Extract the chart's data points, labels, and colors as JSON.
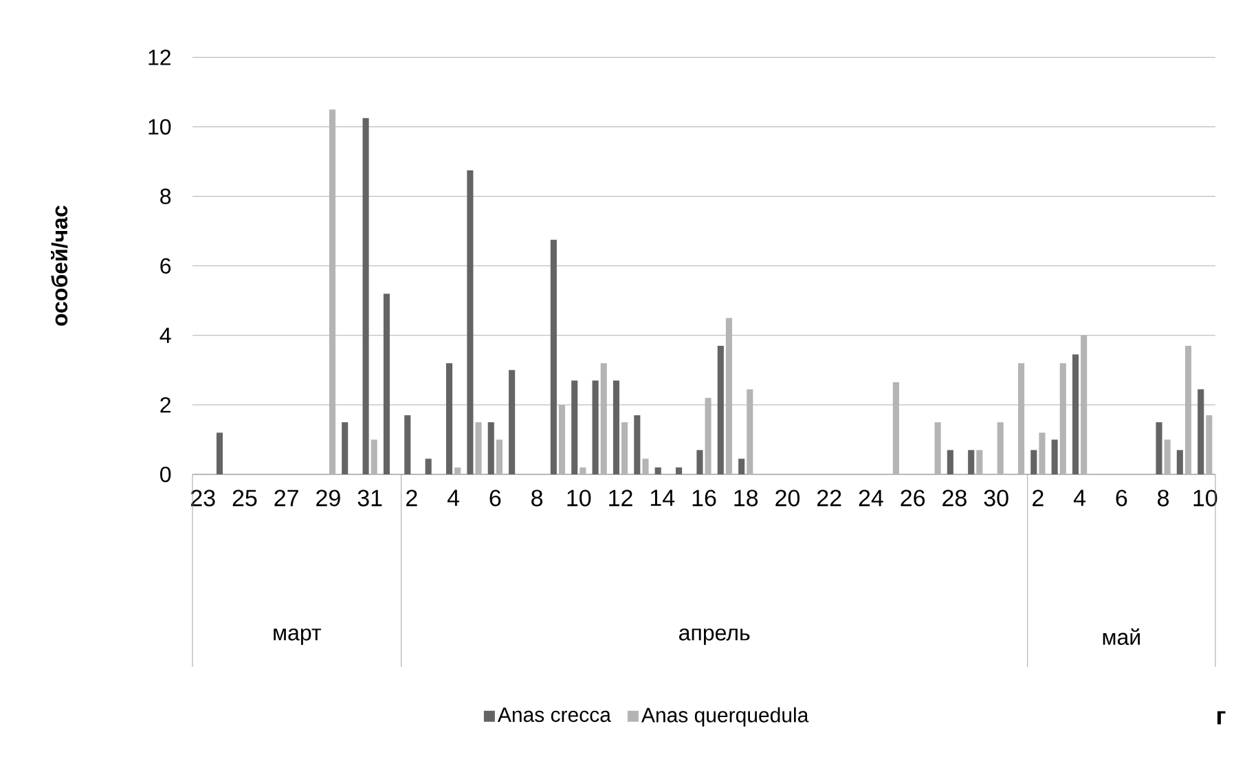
{
  "chart_data": {
    "type": "bar",
    "ylabel": "особей/час",
    "categories": [
      "23",
      null,
      "25",
      null,
      "27",
      null,
      "29",
      null,
      "31",
      null,
      "2",
      null,
      "4",
      null,
      "6",
      null,
      "8",
      null,
      "10",
      null,
      "12",
      null,
      "14",
      null,
      "16",
      null,
      "18",
      null,
      "20",
      null,
      "22",
      null,
      "24",
      null,
      "26",
      null,
      "28",
      null,
      "30",
      null,
      "2",
      null,
      "4",
      null,
      "6",
      null,
      "8",
      null,
      "10"
    ],
    "series": [
      {
        "name": "Anas crecca",
        "color": "#646464",
        "values": [
          null,
          1.2,
          null,
          null,
          null,
          null,
          null,
          1.5,
          10.25,
          5.2,
          1.7,
          0.45,
          3.2,
          8.75,
          1.5,
          3.0,
          null,
          6.75,
          2.7,
          2.7,
          2.7,
          1.7,
          0.2,
          0.2,
          0.7,
          3.7,
          0.45,
          null,
          null,
          null,
          null,
          null,
          null,
          null,
          null,
          null,
          0.7,
          0.7,
          null,
          null,
          0.7,
          1.0,
          3.45,
          null,
          null,
          null,
          1.5,
          0.7,
          2.45
        ]
      },
      {
        "name": "Anas querquedula",
        "color": "#b4b4b4",
        "values": [
          null,
          null,
          null,
          null,
          null,
          null,
          10.5,
          null,
          1.0,
          null,
          null,
          null,
          0.2,
          1.5,
          1.0,
          null,
          null,
          2.0,
          0.2,
          3.2,
          1.5,
          0.45,
          null,
          null,
          2.2,
          4.5,
          2.45,
          null,
          null,
          null,
          null,
          null,
          null,
          2.65,
          null,
          1.5,
          null,
          0.7,
          1.5,
          3.2,
          1.2,
          3.2,
          4.0,
          null,
          null,
          null,
          1.0,
          3.7,
          1.7
        ]
      }
    ],
    "ylim": [
      0,
      12
    ],
    "yticks": [
      0,
      2,
      4,
      6,
      8,
      10,
      12
    ],
    "grid": "y",
    "legend": "bottom",
    "annotations": [
      "март",
      "апрель",
      "май",
      "г"
    ]
  }
}
